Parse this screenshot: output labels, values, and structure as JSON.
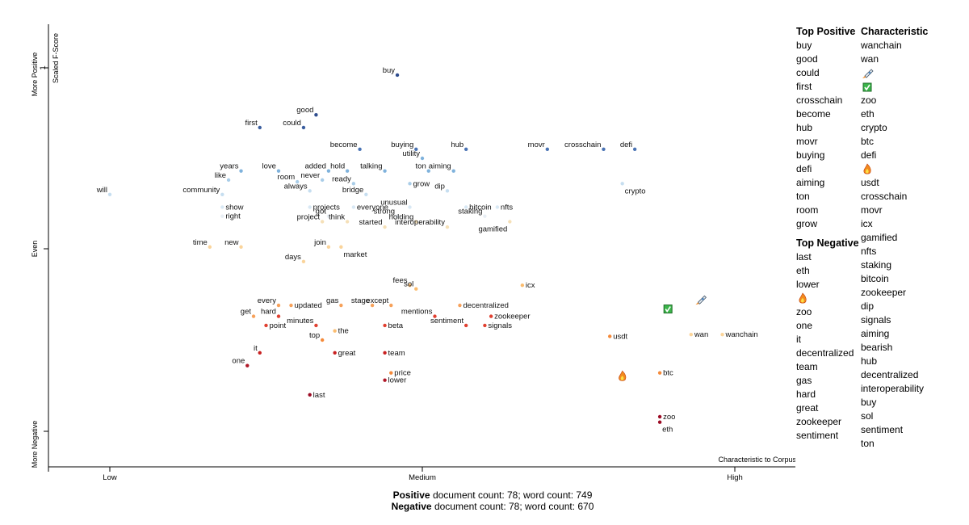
{
  "chart_data": {
    "type": "scatter",
    "xlabel": "Characteristic to Corpus",
    "ylabel": "Scaled F-Score",
    "x_ticks": [
      "Low",
      "Medium",
      "High"
    ],
    "y_ticks": [
      "1",
      "Even"
    ],
    "y_side_labels": {
      "top": "More Positive",
      "middle": "Even",
      "bottom": "More Negative"
    },
    "xlim": [
      0,
      1
    ],
    "ylim": [
      -1,
      1
    ],
    "points": [
      {
        "term": "buy",
        "x": 0.46,
        "y": 0.96,
        "color": "#2f4d8e",
        "label_pos": "left"
      },
      {
        "term": "good",
        "x": 0.33,
        "y": 0.74,
        "color": "#2f4d8e",
        "label_pos": "left"
      },
      {
        "term": "first",
        "x": 0.24,
        "y": 0.67,
        "color": "#3a5d9e",
        "label_pos": "left"
      },
      {
        "term": "could",
        "x": 0.31,
        "y": 0.67,
        "color": "#3a5d9e",
        "label_pos": "left"
      },
      {
        "term": "become",
        "x": 0.4,
        "y": 0.55,
        "color": "#4a73b4",
        "label_pos": "left"
      },
      {
        "term": "buying",
        "x": 0.49,
        "y": 0.55,
        "color": "#4a73b4",
        "label_pos": "left"
      },
      {
        "term": "hub",
        "x": 0.57,
        "y": 0.55,
        "color": "#4a73b4",
        "label_pos": "left"
      },
      {
        "term": "movr",
        "x": 0.7,
        "y": 0.55,
        "color": "#4a73b4",
        "label_pos": "left"
      },
      {
        "term": "crosschain",
        "x": 0.79,
        "y": 0.55,
        "color": "#4a73b4",
        "label_pos": "left"
      },
      {
        "term": "defi",
        "x": 0.84,
        "y": 0.55,
        "color": "#4a73b4",
        "label_pos": "left"
      },
      {
        "term": "utility",
        "x": 0.5,
        "y": 0.5,
        "color": "#7fb2dc",
        "label_pos": "left"
      },
      {
        "term": "years",
        "x": 0.21,
        "y": 0.43,
        "color": "#7fb2dc",
        "label_pos": "left"
      },
      {
        "term": "love",
        "x": 0.27,
        "y": 0.43,
        "color": "#7fb2dc",
        "label_pos": "left"
      },
      {
        "term": "added",
        "x": 0.35,
        "y": 0.43,
        "color": "#7fb2dc",
        "label_pos": "left"
      },
      {
        "term": "hold",
        "x": 0.38,
        "y": 0.43,
        "color": "#7fb2dc",
        "label_pos": "left"
      },
      {
        "term": "talking",
        "x": 0.44,
        "y": 0.43,
        "color": "#7fb2dc",
        "label_pos": "left"
      },
      {
        "term": "ton",
        "x": 0.51,
        "y": 0.43,
        "color": "#7fb2dc",
        "label_pos": "left"
      },
      {
        "term": "aiming",
        "x": 0.55,
        "y": 0.43,
        "color": "#7fb2dc",
        "label_pos": "left"
      },
      {
        "term": "like",
        "x": 0.19,
        "y": 0.38,
        "color": "#a9cde8",
        "label_pos": "left"
      },
      {
        "term": "room",
        "x": 0.3,
        "y": 0.37,
        "color": "#a9cde8",
        "label_pos": "left"
      },
      {
        "term": "never",
        "x": 0.34,
        "y": 0.38,
        "color": "#a9cde8",
        "label_pos": "left"
      },
      {
        "term": "ready",
        "x": 0.39,
        "y": 0.36,
        "color": "#a9cde8",
        "label_pos": "left"
      },
      {
        "term": "grow",
        "x": 0.48,
        "y": 0.36,
        "color": "#a9cde8",
        "label_pos": "right"
      },
      {
        "term": "always",
        "x": 0.32,
        "y": 0.32,
        "color": "#c6def0",
        "label_pos": "left"
      },
      {
        "term": "will",
        "x": 0.0,
        "y": 0.3,
        "color": "#c6def0",
        "label_pos": "left"
      },
      {
        "term": "community",
        "x": 0.18,
        "y": 0.3,
        "color": "#c6def0",
        "label_pos": "left"
      },
      {
        "term": "bridge",
        "x": 0.41,
        "y": 0.3,
        "color": "#c6def0",
        "label_pos": "left"
      },
      {
        "term": "dip",
        "x": 0.54,
        "y": 0.32,
        "color": "#c6def0",
        "label_pos": "left"
      },
      {
        "term": "crypto",
        "x": 0.82,
        "y": 0.36,
        "color": "#c6def0",
        "label_pos": "right-below"
      },
      {
        "term": "show",
        "x": 0.18,
        "y": 0.23,
        "color": "#d8e8f4",
        "label_pos": "right"
      },
      {
        "term": "projects",
        "x": 0.32,
        "y": 0.23,
        "color": "#d8e8f4",
        "label_pos": "right"
      },
      {
        "term": "everyone",
        "x": 0.39,
        "y": 0.23,
        "color": "#d8e8f4",
        "label_pos": "right"
      },
      {
        "term": "unusual",
        "x": 0.48,
        "y": 0.23,
        "color": "#d8e8f4",
        "label_pos": "left"
      },
      {
        "term": "bitcoin",
        "x": 0.57,
        "y": 0.23,
        "color": "#d8e8f4",
        "label_pos": "right"
      },
      {
        "term": "nfts",
        "x": 0.62,
        "y": 0.23,
        "color": "#d8e8f4",
        "label_pos": "right"
      },
      {
        "term": "right",
        "x": 0.18,
        "y": 0.18,
        "color": "#e8eef4",
        "label_pos": "right"
      },
      {
        "term": "got",
        "x": 0.35,
        "y": 0.18,
        "color": "#e8eef4",
        "label_pos": "left"
      },
      {
        "term": "strong",
        "x": 0.46,
        "y": 0.18,
        "color": "#e8eef4",
        "label_pos": "left"
      },
      {
        "term": "staking",
        "x": 0.6,
        "y": 0.18,
        "color": "#e8eef4",
        "label_pos": "left"
      },
      {
        "term": "project",
        "x": 0.34,
        "y": 0.15,
        "color": "#f5e0b8",
        "label_pos": "left"
      },
      {
        "term": "think",
        "x": 0.38,
        "y": 0.15,
        "color": "#f5e0b8",
        "label_pos": "left"
      },
      {
        "term": "holding",
        "x": 0.49,
        "y": 0.15,
        "color": "#f5e0b8",
        "label_pos": "left"
      },
      {
        "term": "started",
        "x": 0.44,
        "y": 0.12,
        "color": "#f5e0b8",
        "label_pos": "left"
      },
      {
        "term": "interoperability",
        "x": 0.54,
        "y": 0.12,
        "color": "#f5e0b8",
        "label_pos": "left"
      },
      {
        "term": "gamified",
        "x": 0.64,
        "y": 0.15,
        "color": "#f5e0b8",
        "label_pos": "left-below"
      },
      {
        "term": "time",
        "x": 0.16,
        "y": 0.01,
        "color": "#fad49b",
        "label_pos": "left"
      },
      {
        "term": "new",
        "x": 0.21,
        "y": 0.01,
        "color": "#fad49b",
        "label_pos": "left"
      },
      {
        "term": "join",
        "x": 0.35,
        "y": 0.01,
        "color": "#fad49b",
        "label_pos": "left"
      },
      {
        "term": "market",
        "x": 0.37,
        "y": 0.01,
        "color": "#fad49b",
        "label_pos": "right-below"
      },
      {
        "term": "days",
        "x": 0.31,
        "y": -0.07,
        "color": "#fad49b",
        "label_pos": "left"
      },
      {
        "term": "fees",
        "x": 0.48,
        "y": -0.2,
        "color": "#fbbd70",
        "label_pos": "left"
      },
      {
        "term": "sol",
        "x": 0.49,
        "y": -0.22,
        "color": "#fbbd70",
        "label_pos": "left"
      },
      {
        "term": "icx",
        "x": 0.66,
        "y": -0.2,
        "color": "#fbbd70",
        "label_pos": "right"
      },
      {
        "term": "every",
        "x": 0.27,
        "y": -0.31,
        "color": "#f7a15a",
        "label_pos": "left"
      },
      {
        "term": "updated",
        "x": 0.29,
        "y": -0.31,
        "color": "#f7a15a",
        "label_pos": "right"
      },
      {
        "term": "gas",
        "x": 0.37,
        "y": -0.31,
        "color": "#f7a15a",
        "label_pos": "left"
      },
      {
        "term": "stage",
        "x": 0.42,
        "y": -0.31,
        "color": "#f7a15a",
        "label_pos": "left"
      },
      {
        "term": "except",
        "x": 0.45,
        "y": -0.31,
        "color": "#f7a15a",
        "label_pos": "left"
      },
      {
        "term": "decentralized",
        "x": 0.56,
        "y": -0.31,
        "color": "#f7a15a",
        "label_pos": "right"
      },
      {
        "term": "get",
        "x": 0.23,
        "y": -0.37,
        "color": "#f7a15a",
        "label_pos": "left"
      },
      {
        "term": "hard",
        "x": 0.27,
        "y": -0.37,
        "color": "#e04030",
        "label_pos": "left"
      },
      {
        "term": "mentions",
        "x": 0.52,
        "y": -0.37,
        "color": "#e04030",
        "label_pos": "left"
      },
      {
        "term": "zookeeper",
        "x": 0.61,
        "y": -0.37,
        "color": "#e04030",
        "label_pos": "right"
      },
      {
        "term": "point",
        "x": 0.25,
        "y": -0.42,
        "color": "#e04030",
        "label_pos": "right"
      },
      {
        "term": "minutes",
        "x": 0.33,
        "y": -0.42,
        "color": "#e04030",
        "label_pos": "left"
      },
      {
        "term": "beta",
        "x": 0.44,
        "y": -0.42,
        "color": "#e04030",
        "label_pos": "right"
      },
      {
        "term": "sentiment",
        "x": 0.57,
        "y": -0.42,
        "color": "#e04030",
        "label_pos": "left"
      },
      {
        "term": "signals",
        "x": 0.6,
        "y": -0.42,
        "color": "#e04030",
        "label_pos": "right"
      },
      {
        "term": "the",
        "x": 0.36,
        "y": -0.45,
        "color": "#fbbd70",
        "label_pos": "right"
      },
      {
        "term": "usdt",
        "x": 0.8,
        "y": -0.48,
        "color": "#f58a3a",
        "label_pos": "right"
      },
      {
        "term": "top",
        "x": 0.34,
        "y": -0.5,
        "color": "#f58a3a",
        "label_pos": "left"
      },
      {
        "term": "it",
        "x": 0.24,
        "y": -0.57,
        "color": "#c82020",
        "label_pos": "left"
      },
      {
        "term": "great",
        "x": 0.36,
        "y": -0.57,
        "color": "#c82020",
        "label_pos": "right"
      },
      {
        "term": "team",
        "x": 0.44,
        "y": -0.57,
        "color": "#c82020",
        "label_pos": "right"
      },
      {
        "term": "one",
        "x": 0.22,
        "y": -0.64,
        "color": "#b01828",
        "label_pos": "left"
      },
      {
        "term": "price",
        "x": 0.45,
        "y": -0.68,
        "color": "#f58a3a",
        "label_pos": "right"
      },
      {
        "term": "btc",
        "x": 0.88,
        "y": -0.68,
        "color": "#f58a3a",
        "label_pos": "right"
      },
      {
        "term": "lower",
        "x": 0.44,
        "y": -0.72,
        "color": "#b01828",
        "label_pos": "right"
      },
      {
        "term": "last",
        "x": 0.32,
        "y": -0.8,
        "color": "#9c0b24",
        "label_pos": "right"
      },
      {
        "term": "zoo",
        "x": 0.88,
        "y": -0.92,
        "color": "#9c0b24",
        "label_pos": "right"
      },
      {
        "term": "eth",
        "x": 0.88,
        "y": -0.95,
        "color": "#9c0b24",
        "label_pos": "right-below"
      },
      {
        "term": "wan",
        "x": 0.93,
        "y": -0.47,
        "color": "#fcd59a",
        "label_pos": "right"
      },
      {
        "term": "wanchain",
        "x": 0.98,
        "y": -0.47,
        "color": "#fcd59a",
        "label_pos": "right"
      }
    ],
    "emoji_points": [
      {
        "term": "rocket",
        "x": 0.945,
        "y": -0.28
      },
      {
        "term": "check",
        "x": 0.893,
        "y": -0.33
      },
      {
        "term": "fire",
        "x": 0.82,
        "y": -0.7
      }
    ]
  },
  "side_panel": {
    "top_positive_title": "Top Positive",
    "top_positive": [
      "buy",
      "good",
      "could",
      "first",
      "crosschain",
      "become",
      "hub",
      "movr",
      "buying",
      "defi",
      "aiming",
      "ton",
      "room",
      "grow"
    ],
    "top_negative_title": "Top Negative",
    "top_negative": [
      "last",
      "eth",
      "lower",
      "🔥",
      "zoo",
      "one",
      "it",
      "decentralized",
      "team",
      "gas",
      "hard",
      "great",
      "zookeeper",
      "sentiment"
    ],
    "characteristic_title": "Characteristic",
    "characteristic": [
      "wanchain",
      "wan",
      "🚀",
      "✅",
      "zoo",
      "eth",
      "crypto",
      "btc",
      "defi",
      "🔥",
      "usdt",
      "crosschain",
      "movr",
      "icx",
      "gamified",
      "nfts",
      "staking",
      "bitcoin",
      "zookeeper",
      "dip",
      "signals",
      "aiming",
      "bearish",
      "hub",
      "decentralized",
      "interoperability",
      "buy",
      "sol",
      "sentiment",
      "ton"
    ]
  },
  "counts": {
    "positive_label": "Positive",
    "positive_text": " document count: 78; word count: 749",
    "negative_label": "Negative",
    "negative_text": " document count: 78; word count: 670"
  }
}
